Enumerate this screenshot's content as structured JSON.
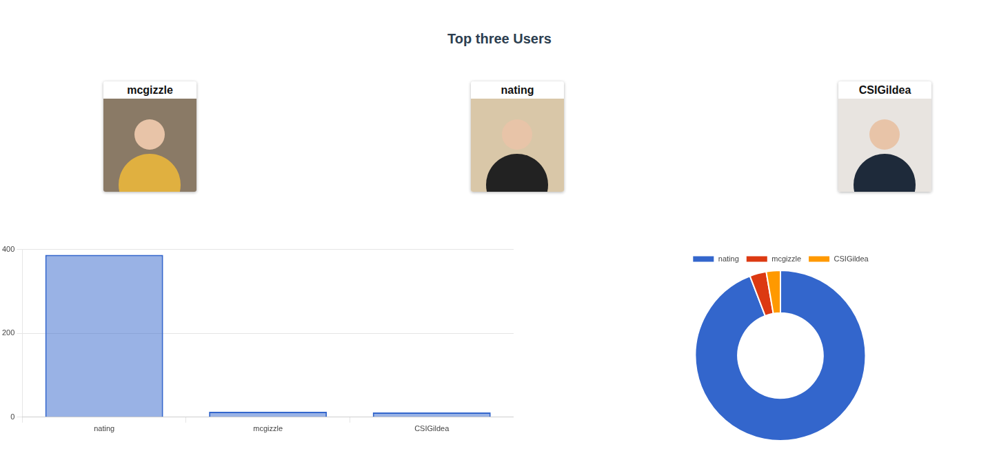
{
  "header": {
    "title": "Top three Users"
  },
  "users": [
    "mcgizzle",
    "nating",
    "CSIGildea"
  ],
  "chart_data": [
    {
      "type": "bar",
      "categories": [
        "nating",
        "mcgizzle",
        "CSIGildea"
      ],
      "values": [
        387,
        13,
        11
      ],
      "color": "#3366cc",
      "ylim": [
        0,
        400
      ],
      "yticks": [
        0,
        200,
        400
      ],
      "grid": true
    },
    {
      "type": "doughnut",
      "categories": [
        "nating",
        "mcgizzle",
        "CSIGildea"
      ],
      "values": [
        387,
        13,
        11
      ],
      "colors": [
        "#3366cc",
        "#dc3912",
        "#ff9900"
      ],
      "legend": "top"
    }
  ]
}
